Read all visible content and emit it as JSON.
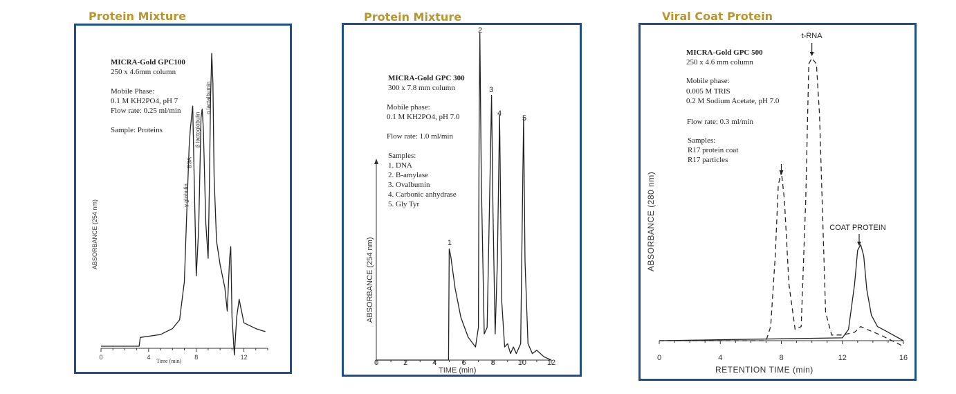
{
  "colors": {
    "title": "#b8962e",
    "frame": "#1f4f8a",
    "ink": "#222222"
  },
  "panels": [
    {
      "title": "Protein Mixture"
    },
    {
      "title": "Protein Mixture"
    },
    {
      "title": "Viral Coat Protein"
    }
  ],
  "chart_data": [
    {
      "type": "line",
      "title": "Protein Mixture",
      "xlabel": "Time (min)",
      "ylabel": "ABSORBANCE (254 nm)",
      "xlim": [
        0,
        14
      ],
      "xticks": [
        0,
        4,
        8,
        12
      ],
      "grid": false,
      "annotations": {
        "column": "MICRA-Gold GPC100",
        "dims": "250 x 4.6mm column",
        "mobile_label": "Mobile Phase:",
        "mobile": "0.1 M KH2PO4, pH 7",
        "flow": "Flow rate: 0.25 ml/min",
        "sample": "Sample: Proteins"
      },
      "peak_labels": [
        {
          "text": "γ globulin",
          "x": 7.4
        },
        {
          "text": "BSA",
          "x": 7.7
        },
        {
          "text": "β lactoglobulin",
          "x": 8.4
        },
        {
          "text": "α lactalbumin",
          "x": 9.3
        }
      ],
      "series": [
        {
          "x": [
            0,
            3.2,
            3.3,
            5,
            6,
            6.6,
            7.0,
            7.2,
            7.4,
            7.5,
            7.6,
            7.7,
            7.8,
            8.0,
            8.2,
            8.4,
            8.5,
            8.6,
            8.8,
            9.0,
            9.1,
            9.2,
            9.3,
            9.4,
            9.5,
            9.7,
            10.0,
            10.4,
            10.6,
            10.8,
            10.9,
            11.0,
            11.2,
            11.4,
            11.6,
            12.0,
            13.0,
            13.8
          ],
          "y": [
            0.0,
            0.0,
            0.03,
            0.04,
            0.06,
            0.09,
            0.22,
            0.45,
            0.68,
            0.74,
            0.78,
            0.82,
            0.62,
            0.24,
            0.4,
            0.78,
            0.81,
            0.74,
            0.42,
            0.3,
            0.55,
            0.85,
            1.0,
            0.9,
            0.58,
            0.36,
            0.28,
            0.2,
            0.12,
            0.3,
            0.34,
            0.1,
            -0.03,
            0.1,
            0.16,
            0.08,
            0.06,
            0.05
          ]
        }
      ]
    },
    {
      "type": "line",
      "title": "Protein Mixture",
      "xlabel": "TIME  (min)",
      "ylabel": "ABSORBANCE  (254 nm)",
      "xlim": [
        0,
        12
      ],
      "xticks": [
        0,
        2,
        4,
        6,
        8,
        10,
        12
      ],
      "grid": false,
      "annotations": {
        "column": "MICRA-Gold GPC 300",
        "dims": "300 x 7.8 mm column",
        "mobile_label": "Mobile phase:",
        "mobile": "0.1 M KH2PO4, pH 7.0",
        "flow": "Flow rate: 1.0 ml/min",
        "samples_label": "Samples:",
        "samples": [
          "1. DNA",
          "2. B-amylase",
          "3. Ovalbumin",
          "4. Carbonic anhydrase",
          "5. Gly Tyr"
        ]
      },
      "peak_labels": [
        {
          "text": "1",
          "x": 5.0
        },
        {
          "text": "2",
          "x": 7.1
        },
        {
          "text": "3",
          "x": 7.9
        },
        {
          "text": "4",
          "x": 8.4
        },
        {
          "text": "5",
          "x": 10.1
        }
      ],
      "series": [
        {
          "x": [
            0,
            4.95,
            5.0,
            5.1,
            5.4,
            5.8,
            6.3,
            6.8,
            7.0,
            7.05,
            7.1,
            7.2,
            7.4,
            7.6,
            7.75,
            7.9,
            8.0,
            8.15,
            8.3,
            8.45,
            8.6,
            8.8,
            9.0,
            9.2,
            9.4,
            9.6,
            9.9,
            10.0,
            10.1,
            10.2,
            10.4,
            10.7,
            11.0,
            11.5,
            12.0
          ],
          "y": [
            0.0,
            0.0,
            0.34,
            0.32,
            0.22,
            0.13,
            0.07,
            0.04,
            0.1,
            0.7,
            1.0,
            0.55,
            0.08,
            0.1,
            0.45,
            0.81,
            0.45,
            0.08,
            0.3,
            0.75,
            0.18,
            0.04,
            0.05,
            0.02,
            0.04,
            0.02,
            0.05,
            0.4,
            0.74,
            0.3,
            0.05,
            0.02,
            0.03,
            0.01,
            0.0
          ]
        }
      ]
    },
    {
      "type": "line",
      "title": "Viral Coat Protein",
      "xlabel": "RETENTION  TIME  (min)",
      "ylabel": "ABSORBANCE  (280 nm)",
      "xlim": [
        0,
        16
      ],
      "xticks": [
        0,
        4,
        8,
        12,
        16
      ],
      "grid": false,
      "annotations": {
        "column": "MICRA-Gold GPC 500",
        "dims": "250 x 4.6 mm column",
        "mobile_label": "Mobile phase:",
        "mobile1": "0.005 M TRIS",
        "mobile2": "0.2 M Sodium Acetate, pH 7.0",
        "flow": "Flow rate: 0.3 ml/min",
        "samples_label": "Samples:",
        "samples": [
          "R17 protein coat",
          "R17 particles"
        ]
      },
      "peak_labels": [
        {
          "text": "t-RNA",
          "x": 10.0
        },
        {
          "text": "COAT  PROTEIN",
          "x": 13.2
        }
      ],
      "series": [
        {
          "name": "R17 protein coat",
          "x": [
            0,
            12.0,
            12.4,
            12.8,
            13.0,
            13.2,
            13.4,
            13.6,
            13.9,
            14.3,
            15.0,
            16.0
          ],
          "y": [
            0.0,
            0.01,
            0.04,
            0.2,
            0.32,
            0.34,
            0.3,
            0.18,
            0.09,
            0.05,
            0.03,
            0.0
          ]
        },
        {
          "name": "R17 particles",
          "x": [
            0,
            7.0,
            7.3,
            7.6,
            7.8,
            8.0,
            8.2,
            8.5,
            8.9,
            9.3,
            9.6,
            9.8,
            10.0,
            10.3,
            10.5,
            10.9,
            11.3,
            12.0,
            12.8,
            13.2,
            13.6,
            14.5,
            16.0
          ],
          "y": [
            0.0,
            0.0,
            0.05,
            0.3,
            0.55,
            0.6,
            0.5,
            0.2,
            0.04,
            0.05,
            0.5,
            0.98,
            1.0,
            0.98,
            0.8,
            0.1,
            0.02,
            0.02,
            0.03,
            0.05,
            0.04,
            0.02,
            -0.02
          ]
        }
      ]
    }
  ]
}
